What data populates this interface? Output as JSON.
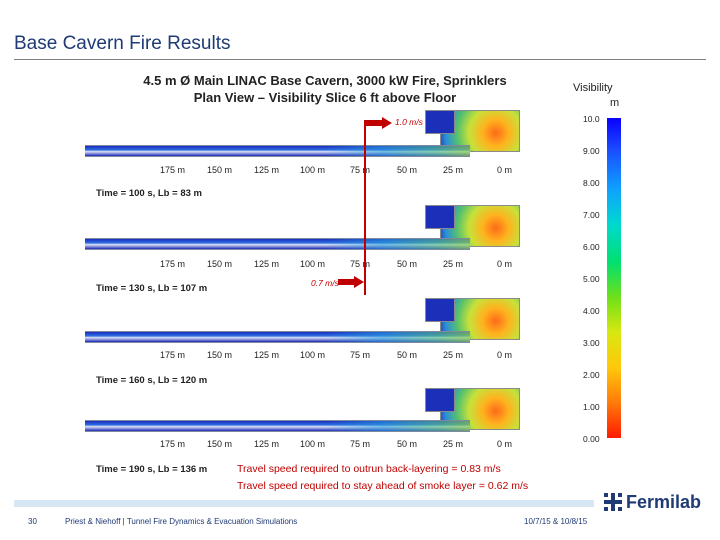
{
  "slide": {
    "title": "Base Cavern Fire Results",
    "figure_title_line1": "4.5 m Ø Main LINAC Base Cavern, 3000 kW Fire, Sprinklers",
    "figure_title_line2": "Plan View – Visibility Slice 6 ft above Floor"
  },
  "legend": {
    "title": "Visibility",
    "unit": "m",
    "ticks": [
      "10.0",
      "9.00",
      "8.00",
      "7.00",
      "6.00",
      "5.00",
      "4.00",
      "3.00",
      "2.00",
      "1.00",
      "0.00"
    ]
  },
  "distance_ticks": [
    "175 m",
    "150 m",
    "125 m",
    "100 m",
    "75 m",
    "50 m",
    "25 m",
    "0 m"
  ],
  "panels": [
    {
      "time_label": "Time = 100 s, Lb = 83 m"
    },
    {
      "time_label": "Time = 130 s, Lb = 107 m"
    },
    {
      "time_label": "Time = 160 s, Lb = 120 m"
    },
    {
      "time_label": "Time = 190 s, Lb = 136 m"
    }
  ],
  "arrows": {
    "speed1": "1.0 m/s",
    "speed2": "0.7 m/s"
  },
  "notes": {
    "line1": "Travel speed required to outrun back-layering = 0.83 m/s",
    "line2": "Travel speed required to stay ahead of smoke layer = 0.62 m/s"
  },
  "footer": {
    "page_number": "30",
    "authors": "Priest & Niehoff | Tunnel Fire Dynamics & Evacuation Simulations",
    "date": "10/7/15 & 10/8/15",
    "logo_text": "Fermilab"
  },
  "colors": {
    "title": "#1f3a74",
    "accent_red": "#c00000"
  }
}
